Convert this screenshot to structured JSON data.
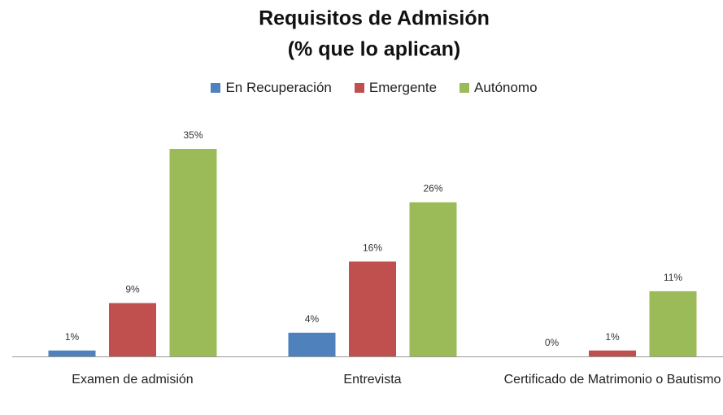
{
  "chart_data": {
    "type": "bar",
    "title": "Requisitos de Admisión",
    "subtitle": "(% que lo aplican)",
    "categories": [
      "Examen de admisión",
      "Entrevista",
      "Certificado de Matrimonio o Bautismo"
    ],
    "series": [
      {
        "name": "En Recuperación",
        "color": "#4f81bd",
        "values": [
          1,
          4,
          0
        ],
        "value_labels": [
          "1%",
          "4%",
          "0%"
        ]
      },
      {
        "name": "Emergente",
        "color": "#c0504d",
        "values": [
          9,
          16,
          1
        ],
        "value_labels": [
          "9%",
          "16%",
          "1%"
        ]
      },
      {
        "name": "Autónomo",
        "color": "#9bbb59",
        "values": [
          35,
          26,
          11
        ],
        "value_labels": [
          "35%",
          "26%",
          "11%"
        ]
      }
    ],
    "legend": "top"
  }
}
